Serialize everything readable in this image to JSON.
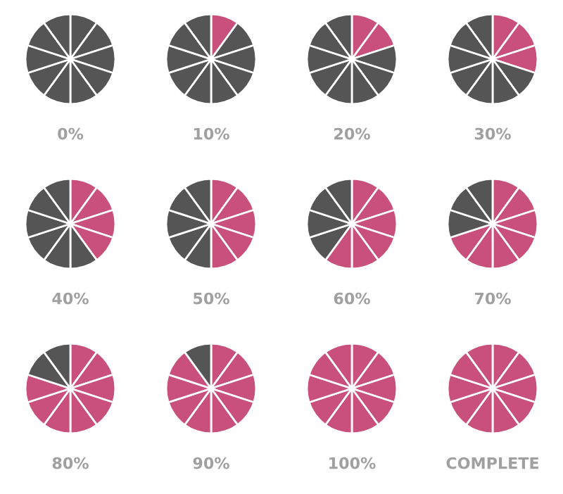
{
  "chart_data": [
    {
      "type": "pie",
      "title": "0%",
      "categories": [
        null,
        null,
        null,
        null,
        null,
        null,
        null,
        null,
        null,
        null
      ],
      "values": [
        10,
        10,
        10,
        10,
        10,
        10,
        10,
        10,
        10,
        10
      ],
      "colors": [
        "#555555",
        "#555555",
        "#555555",
        "#555555",
        "#555555",
        "#555555",
        "#555555",
        "#555555",
        "#555555",
        "#555555"
      ]
    },
    {
      "type": "pie",
      "title": "10%",
      "categories": [
        null,
        null,
        null,
        null,
        null,
        null,
        null,
        null,
        null,
        null
      ],
      "values": [
        10,
        10,
        10,
        10,
        10,
        10,
        10,
        10,
        10,
        10
      ],
      "colors": [
        "#c9507a",
        "#555555",
        "#555555",
        "#555555",
        "#555555",
        "#555555",
        "#555555",
        "#555555",
        "#555555",
        "#555555"
      ]
    },
    {
      "type": "pie",
      "title": "20%",
      "categories": [
        null,
        null,
        null,
        null,
        null,
        null,
        null,
        null,
        null,
        null
      ],
      "values": [
        10,
        10,
        10,
        10,
        10,
        10,
        10,
        10,
        10,
        10
      ],
      "colors": [
        "#c9507a",
        "#c9507a",
        "#555555",
        "#555555",
        "#555555",
        "#555555",
        "#555555",
        "#555555",
        "#555555",
        "#555555"
      ]
    },
    {
      "type": "pie",
      "title": "30%",
      "categories": [
        null,
        null,
        null,
        null,
        null,
        null,
        null,
        null,
        null,
        null
      ],
      "values": [
        10,
        10,
        10,
        10,
        10,
        10,
        10,
        10,
        10,
        10
      ],
      "colors": [
        "#c9507a",
        "#c9507a",
        "#c9507a",
        "#555555",
        "#555555",
        "#555555",
        "#555555",
        "#555555",
        "#555555",
        "#555555"
      ]
    },
    {
      "type": "pie",
      "title": "40%",
      "categories": [
        null,
        null,
        null,
        null,
        null,
        null,
        null,
        null,
        null,
        null
      ],
      "values": [
        10,
        10,
        10,
        10,
        10,
        10,
        10,
        10,
        10,
        10
      ],
      "colors": [
        "#c9507a",
        "#c9507a",
        "#c9507a",
        "#c9507a",
        "#555555",
        "#555555",
        "#555555",
        "#555555",
        "#555555",
        "#555555"
      ]
    },
    {
      "type": "pie",
      "title": "50%",
      "categories": [
        null,
        null,
        null,
        null,
        null,
        null,
        null,
        null,
        null,
        null
      ],
      "values": [
        10,
        10,
        10,
        10,
        10,
        10,
        10,
        10,
        10,
        10
      ],
      "colors": [
        "#c9507a",
        "#c9507a",
        "#c9507a",
        "#c9507a",
        "#c9507a",
        "#555555",
        "#555555",
        "#555555",
        "#555555",
        "#555555"
      ]
    },
    {
      "type": "pie",
      "title": "60%",
      "categories": [
        null,
        null,
        null,
        null,
        null,
        null,
        null,
        null,
        null,
        null
      ],
      "values": [
        10,
        10,
        10,
        10,
        10,
        10,
        10,
        10,
        10,
        10
      ],
      "colors": [
        "#c9507a",
        "#c9507a",
        "#c9507a",
        "#c9507a",
        "#c9507a",
        "#c9507a",
        "#555555",
        "#555555",
        "#555555",
        "#555555"
      ]
    },
    {
      "type": "pie",
      "title": "70%",
      "categories": [
        null,
        null,
        null,
        null,
        null,
        null,
        null,
        null,
        null,
        null
      ],
      "values": [
        10,
        10,
        10,
        10,
        10,
        10,
        10,
        10,
        10,
        10
      ],
      "colors": [
        "#c9507a",
        "#c9507a",
        "#c9507a",
        "#c9507a",
        "#c9507a",
        "#c9507a",
        "#c9507a",
        "#555555",
        "#555555",
        "#555555"
      ]
    },
    {
      "type": "pie",
      "title": "80%",
      "categories": [
        null,
        null,
        null,
        null,
        null,
        null,
        null,
        null,
        null,
        null
      ],
      "values": [
        10,
        10,
        10,
        10,
        10,
        10,
        10,
        10,
        10,
        10
      ],
      "colors": [
        "#c9507a",
        "#c9507a",
        "#c9507a",
        "#c9507a",
        "#c9507a",
        "#c9507a",
        "#c9507a",
        "#c9507a",
        "#555555",
        "#555555"
      ]
    },
    {
      "type": "pie",
      "title": "90%",
      "categories": [
        null,
        null,
        null,
        null,
        null,
        null,
        null,
        null,
        null,
        null
      ],
      "values": [
        10,
        10,
        10,
        10,
        10,
        10,
        10,
        10,
        10,
        10
      ],
      "colors": [
        "#c9507a",
        "#c9507a",
        "#c9507a",
        "#c9507a",
        "#c9507a",
        "#c9507a",
        "#c9507a",
        "#c9507a",
        "#c9507a",
        "#555555"
      ]
    },
    {
      "type": "pie",
      "title": "100%",
      "categories": [
        null,
        null,
        null,
        null,
        null,
        null,
        null,
        null,
        null,
        null
      ],
      "values": [
        10,
        10,
        10,
        10,
        10,
        10,
        10,
        10,
        10,
        10
      ],
      "colors": [
        "#c9507a",
        "#c9507a",
        "#c9507a",
        "#c9507a",
        "#c9507a",
        "#c9507a",
        "#c9507a",
        "#c9507a",
        "#c9507a",
        "#c9507a"
      ]
    },
    {
      "type": "pie",
      "title": "COMPLETE",
      "categories": [
        null,
        null,
        null,
        null,
        null,
        null,
        null,
        null,
        null,
        null
      ],
      "values": [
        10,
        10,
        10,
        10,
        10,
        10,
        10,
        10,
        10,
        10
      ],
      "colors": [
        "#c9507a",
        "#c9507a",
        "#c9507a",
        "#c9507a",
        "#c9507a",
        "#c9507a",
        "#c9507a",
        "#c9507a",
        "#c9507a",
        "#c9507a"
      ]
    }
  ]
}
